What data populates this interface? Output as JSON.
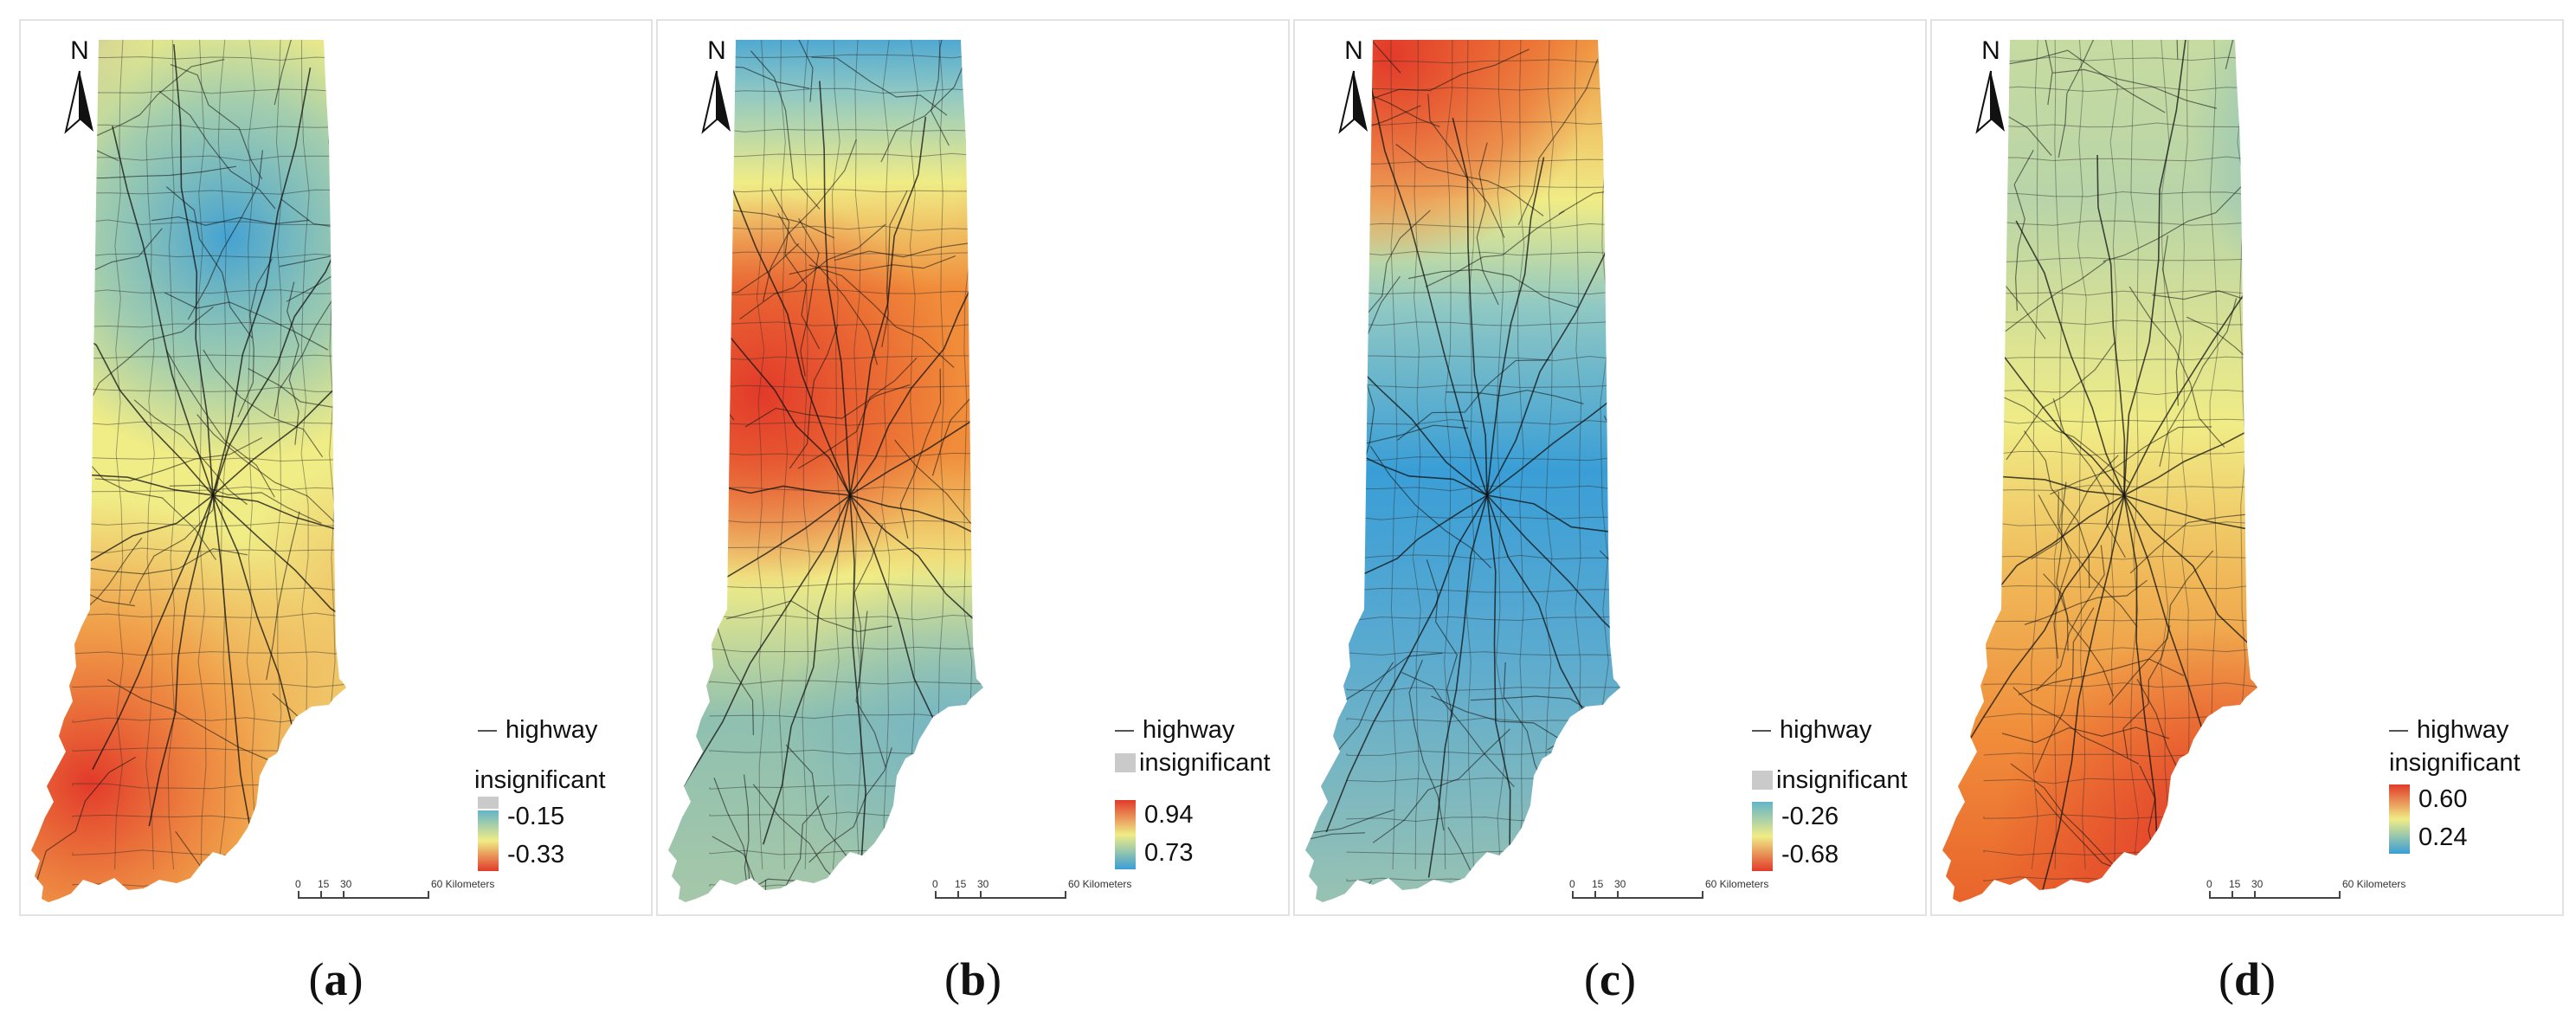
{
  "north_label": "N",
  "legend_highway": "highway",
  "legend_insignificant": "insignificant",
  "scale_labels": [
    "0",
    "15",
    "30",
    "60 Kilometers"
  ],
  "colors": {
    "red": "#e23a2a",
    "orange": "#f08c3a",
    "yellow": "#f0ec86",
    "teal": "#8fc0b0",
    "blue": "#3a9ed6",
    "gray": "#b4b8bc",
    "road": "#1a1a1a"
  },
  "panels": [
    {
      "caption": "a",
      "legend_high": "-0.15",
      "legend_low": "-0.33",
      "ramp_top_color": "#63b4c9",
      "ramp_bottom_color": "#e23a2a",
      "insig_swatch_shown": true
    },
    {
      "caption": "b",
      "legend_high": "0.94",
      "legend_low": "0.73",
      "ramp_top_color": "#e23a2a",
      "ramp_bottom_color": "#3a9ed6",
      "insig_swatch_shown": true
    },
    {
      "caption": "c",
      "legend_high": "-0.26",
      "legend_low": "-0.68",
      "ramp_top_color": "#63b4c9",
      "ramp_bottom_color": "#e23a2a",
      "insig_swatch_shown": true
    },
    {
      "caption": "d",
      "legend_high": "0.60",
      "legend_low": "0.24",
      "ramp_top_color": "#e23a2a",
      "ramp_bottom_color": "#3a9ed6",
      "insig_swatch_shown": false
    }
  ]
}
